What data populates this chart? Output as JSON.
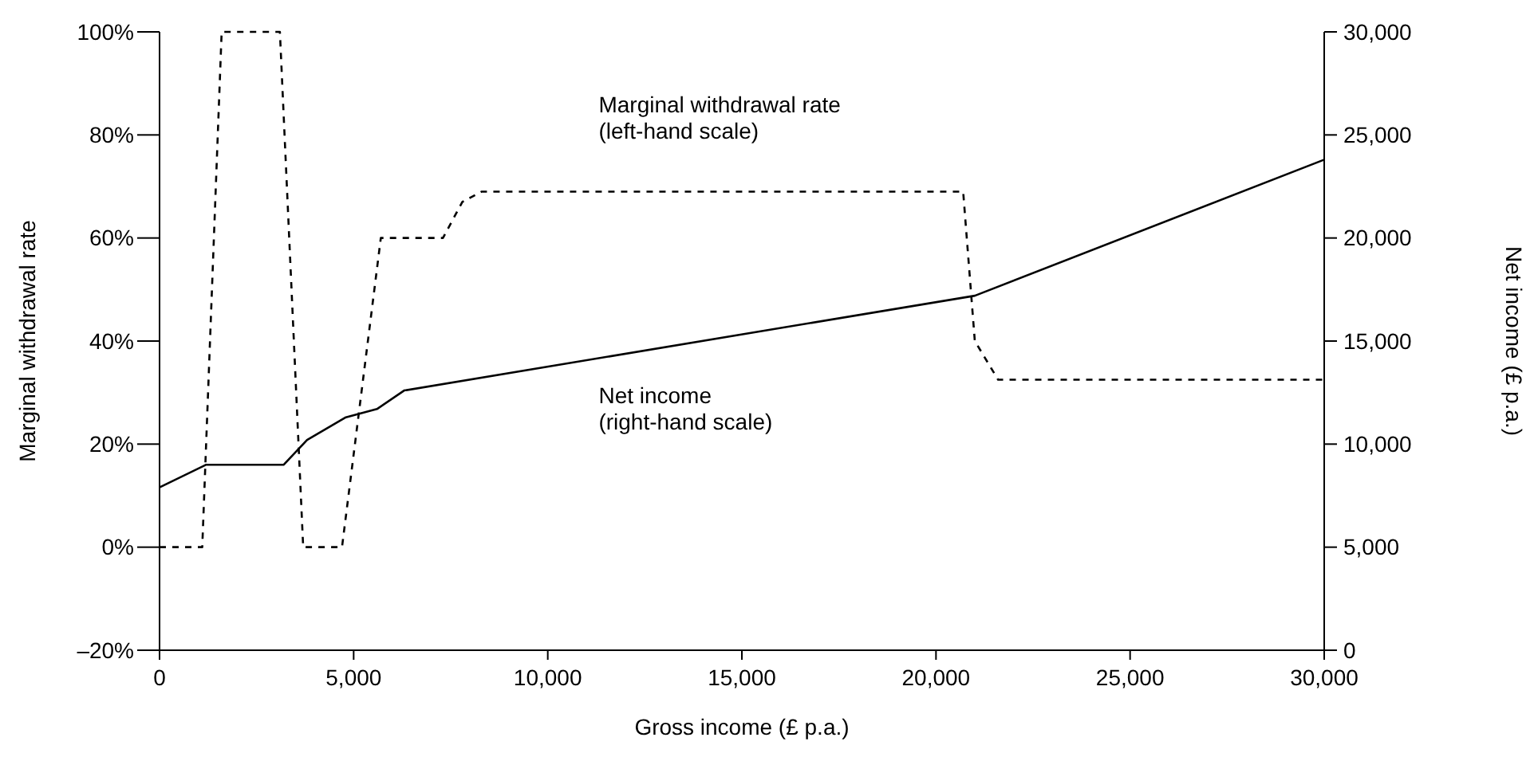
{
  "chart_data": {
    "type": "line",
    "xlabel": "Gross income (£ p.a.)",
    "ylabel": "Marginal withdrawal rate",
    "y2label": "Net income (£ p.a.)",
    "xlim": [
      0,
      30000
    ],
    "xticks": [
      {
        "value": 0,
        "label": "0"
      },
      {
        "value": 5000,
        "label": "5,000"
      },
      {
        "value": 10000,
        "label": "10,000"
      },
      {
        "value": 15000,
        "label": "15,000"
      },
      {
        "value": 20000,
        "label": "20,000"
      },
      {
        "value": 25000,
        "label": "25,000"
      },
      {
        "value": 30000,
        "label": "30,000"
      }
    ],
    "ylim": [
      -20,
      100
    ],
    "yticks": [
      {
        "value": -20,
        "label": "–20%"
      },
      {
        "value": 0,
        "label": "0%"
      },
      {
        "value": 20,
        "label": "20%"
      },
      {
        "value": 40,
        "label": "40%"
      },
      {
        "value": 60,
        "label": "60%"
      },
      {
        "value": 80,
        "label": "80%"
      },
      {
        "value": 100,
        "label": "100%"
      }
    ],
    "y2lim": [
      0,
      30000
    ],
    "y2ticks": [
      {
        "value": 0,
        "label": "0"
      },
      {
        "value": 5000,
        "label": "5,000"
      },
      {
        "value": 10000,
        "label": "10,000"
      },
      {
        "value": 15000,
        "label": "15,000"
      },
      {
        "value": 20000,
        "label": "20,000"
      },
      {
        "value": 25000,
        "label": "25,000"
      },
      {
        "value": 30000,
        "label": "30,000"
      }
    ],
    "series": [
      {
        "color": "#000000",
        "line_style": "dashed",
        "x": [
          0,
          1100,
          1600,
          3100,
          3700,
          4700,
          5700,
          7300,
          7800,
          8300,
          20700,
          21000,
          21600,
          30000
        ],
        "values": [
          0,
          0,
          100,
          100,
          0,
          0,
          60,
          60,
          67,
          69,
          69,
          40,
          32.5,
          32.5
        ]
      },
      {
        "color": "#000000",
        "line_style": "solid",
        "axis": "y2",
        "x": [
          0,
          1200,
          3200,
          3800,
          4800,
          5600,
          6300,
          21000,
          30000
        ],
        "values": [
          7900,
          9000,
          9000,
          10200,
          11300,
          11700,
          12600,
          17200,
          23800
        ]
      }
    ],
    "annotations": [
      "Marginal withdrawal rate\n(left-hand scale)",
      "Net income\n(right-hand scale)"
    ],
    "grid": false,
    "marker": "none"
  }
}
